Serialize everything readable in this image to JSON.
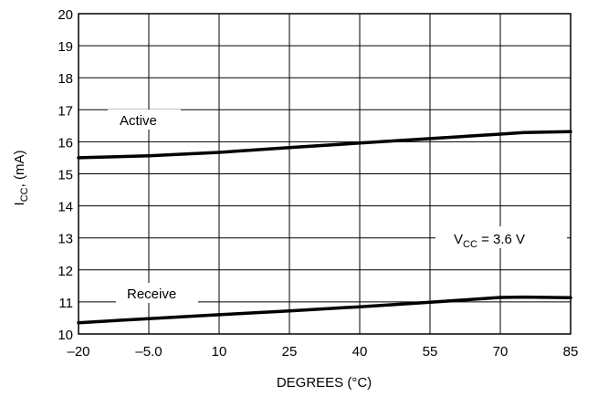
{
  "chart_data": {
    "type": "line",
    "title": "",
    "xlabel": "DEGREES (°C)",
    "ylabel_main": "I",
    "ylabel_sub": "CC",
    "ylabel_rest": ", (mA)",
    "x_tick_labels": [
      "–20",
      "–5.0",
      "10",
      "25",
      "40",
      "55",
      "70",
      "85"
    ],
    "x_tick_values": [
      -20,
      -5,
      10,
      25,
      40,
      55,
      70,
      85
    ],
    "y_tick_labels": [
      "10",
      "11",
      "12",
      "13",
      "14",
      "15",
      "16",
      "17",
      "18",
      "19",
      "20"
    ],
    "y_tick_values": [
      10,
      11,
      12,
      13,
      14,
      15,
      16,
      17,
      18,
      19,
      20
    ],
    "xlim": [
      -20,
      85
    ],
    "ylim": [
      10,
      20
    ],
    "grid": true,
    "series": [
      {
        "name": "Active",
        "x": [
          -20,
          -5,
          10,
          25,
          40,
          55,
          70,
          75,
          85
        ],
        "y": [
          15.5,
          15.56,
          15.67,
          15.82,
          15.96,
          16.1,
          16.24,
          16.29,
          16.32
        ]
      },
      {
        "name": "Receive",
        "x": [
          -20,
          -5,
          10,
          25,
          40,
          55,
          70,
          75,
          85
        ],
        "y": [
          10.35,
          10.48,
          10.6,
          10.72,
          10.85,
          10.99,
          11.14,
          11.15,
          11.13
        ]
      }
    ],
    "annotation": {
      "main": "V",
      "sub": "CC",
      "rest": " = 3.6 V"
    }
  }
}
